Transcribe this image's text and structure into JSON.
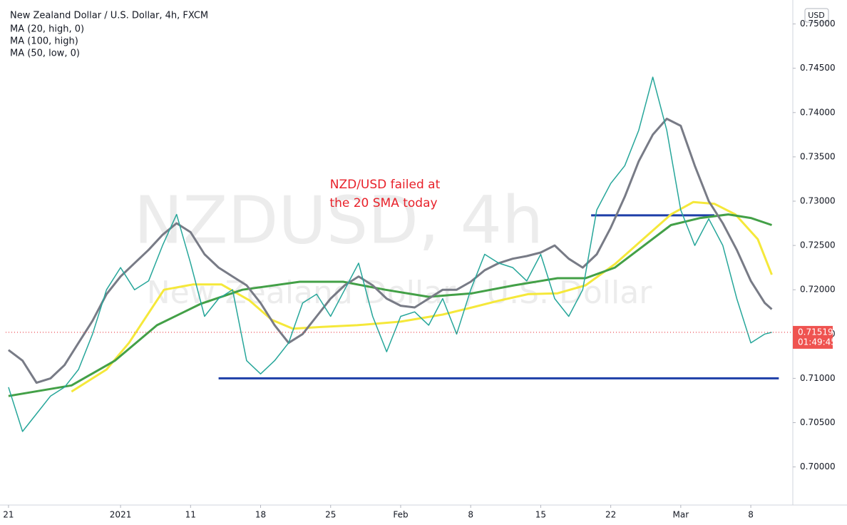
{
  "chart_data": {
    "type": "line",
    "title": "New Zealand Dollar / U.S. Dollar, 4h, FXCM",
    "watermark": {
      "symbol": "NZDUSD, 4h",
      "description": "New Zealand Dollar / U.S. Dollar"
    },
    "currency": "USD",
    "countdown": "01:49:45",
    "annotation": [
      "NZD/USD failed at",
      "the 20 SMA today"
    ],
    "x": [
      0,
      1,
      2,
      3,
      4,
      5,
      6,
      7,
      8,
      9,
      10,
      11,
      12,
      13,
      14,
      15,
      16,
      17,
      18,
      19,
      20,
      21,
      22,
      23,
      24,
      25,
      26,
      27,
      28,
      29,
      30,
      31,
      32,
      33,
      34,
      35,
      36,
      37,
      38,
      39,
      40,
      41,
      42,
      43,
      44,
      45,
      46,
      47,
      48,
      49,
      50,
      51,
      52,
      53,
      54,
      54.5
    ],
    "series": [
      {
        "name": "NZDUSD",
        "color": "#26a69a",
        "values": [
          0.709,
          0.704,
          0.706,
          0.708,
          0.709,
          0.711,
          0.715,
          0.72,
          0.7225,
          0.72,
          0.721,
          0.725,
          0.7285,
          0.723,
          0.717,
          0.719,
          0.72,
          0.712,
          0.7105,
          0.712,
          0.714,
          0.7185,
          0.7195,
          0.717,
          0.72,
          0.723,
          0.717,
          0.713,
          0.717,
          0.7175,
          0.716,
          0.719,
          0.715,
          0.72,
          0.724,
          0.723,
          0.7225,
          0.721,
          0.724,
          0.719,
          0.717,
          0.72,
          0.729,
          0.732,
          0.734,
          0.738,
          0.744,
          0.738,
          0.729,
          0.725,
          0.728,
          0.725,
          0.719,
          0.714,
          0.715,
          0.71519
        ]
      },
      {
        "name": "MA (20, high, 0)",
        "color": "#787b86",
        "values": [
          0.7132,
          0.712,
          0.7095,
          0.71,
          0.7115,
          0.714,
          0.7165,
          0.7195,
          0.7215,
          0.723,
          0.7245,
          0.7262,
          0.7275,
          0.7265,
          0.724,
          0.7225,
          0.7215,
          0.7205,
          0.7185,
          0.716,
          0.714,
          0.715,
          0.717,
          0.719,
          0.7205,
          0.7215,
          0.7205,
          0.719,
          0.7182,
          0.718,
          0.719,
          0.72,
          0.72,
          0.7209,
          0.7222,
          0.723,
          0.7235,
          0.7238,
          0.7242,
          0.725,
          0.7235,
          0.7225,
          0.724,
          0.727,
          0.7305,
          0.7345,
          0.7375,
          0.7393,
          0.7385,
          0.734,
          0.73,
          0.7275,
          0.7245,
          0.721,
          0.7185,
          0.7178
        ]
      },
      {
        "name": "MA (100, high)",
        "color": "#43a047",
        "x": [
          0,
          4.5,
          7.6,
          10.6,
          13.7,
          16.7,
          20.8,
          23.9,
          26.9,
          30,
          33.1,
          36.1,
          39.2,
          41.2,
          43.3,
          45.3,
          47.3,
          49.4,
          51.4,
          53,
          54.5
        ],
        "values": [
          0.708,
          0.7092,
          0.712,
          0.716,
          0.7184,
          0.72,
          0.7209,
          0.7209,
          0.72,
          0.7192,
          0.7196,
          0.7205,
          0.7213,
          0.7213,
          0.7225,
          0.7249,
          0.7273,
          0.7281,
          0.7285,
          0.7281,
          0.7273
        ]
      },
      {
        "name": "MA (50, low, 0)",
        "color": "#f5e83a",
        "x": [
          4.5,
          7,
          8.6,
          9.6,
          11.1,
          13.2,
          15.2,
          17.2,
          18.8,
          20.3,
          22.3,
          24.9,
          28,
          31,
          33.1,
          35.1,
          37.1,
          39.2,
          41.2,
          43.3,
          45.3,
          47.3,
          48.9,
          50.4,
          51.9,
          53.5,
          54.5
        ],
        "values": [
          0.7085,
          0.711,
          0.714,
          0.7164,
          0.72,
          0.7206,
          0.7206,
          0.7188,
          0.7166,
          0.7156,
          0.7158,
          0.716,
          0.7164,
          0.7172,
          0.718,
          0.7188,
          0.7195,
          0.7196,
          0.7205,
          0.7229,
          0.7257,
          0.7285,
          0.7299,
          0.7297,
          0.7285,
          0.7257,
          0.7217
        ]
      }
    ],
    "levels": [
      {
        "value": 0.71,
        "x": [
          15,
          55
        ]
      },
      {
        "value": 0.7284,
        "x": [
          41.6,
          50.4
        ]
      }
    ],
    "level_color": "#1e3fa8",
    "xlim": [
      -0.2,
      56
    ],
    "ylim": [
      0.6957,
      0.7519
    ],
    "xticks": [
      {
        "value": 0,
        "label": "21"
      },
      {
        "value": 8,
        "label": "2021"
      },
      {
        "value": 13,
        "label": "11"
      },
      {
        "value": 18,
        "label": "18"
      },
      {
        "value": 23,
        "label": "25"
      },
      {
        "value": 28,
        "label": "Feb"
      },
      {
        "value": 33,
        "label": "8"
      },
      {
        "value": 38,
        "label": "15"
      },
      {
        "value": 43,
        "label": "22"
      },
      {
        "value": 48,
        "label": "Mar"
      },
      {
        "value": 53,
        "label": "8"
      }
    ],
    "yticks": [
      {
        "value": 0.7,
        "label": "0.70000"
      },
      {
        "value": 0.705,
        "label": "0.70500"
      },
      {
        "value": 0.71,
        "label": "0.71000"
      },
      {
        "value": 0.715,
        "label": "0.71500"
      },
      {
        "value": 0.72,
        "label": "0.72000"
      },
      {
        "value": 0.725,
        "label": "0.72500"
      },
      {
        "value": 0.73,
        "label": "0.73000"
      },
      {
        "value": 0.735,
        "label": "0.73500"
      },
      {
        "value": 0.74,
        "label": "0.74000"
      },
      {
        "value": 0.745,
        "label": "0.74500"
      },
      {
        "value": 0.75,
        "label": "0.75000"
      }
    ],
    "grid": false
  }
}
